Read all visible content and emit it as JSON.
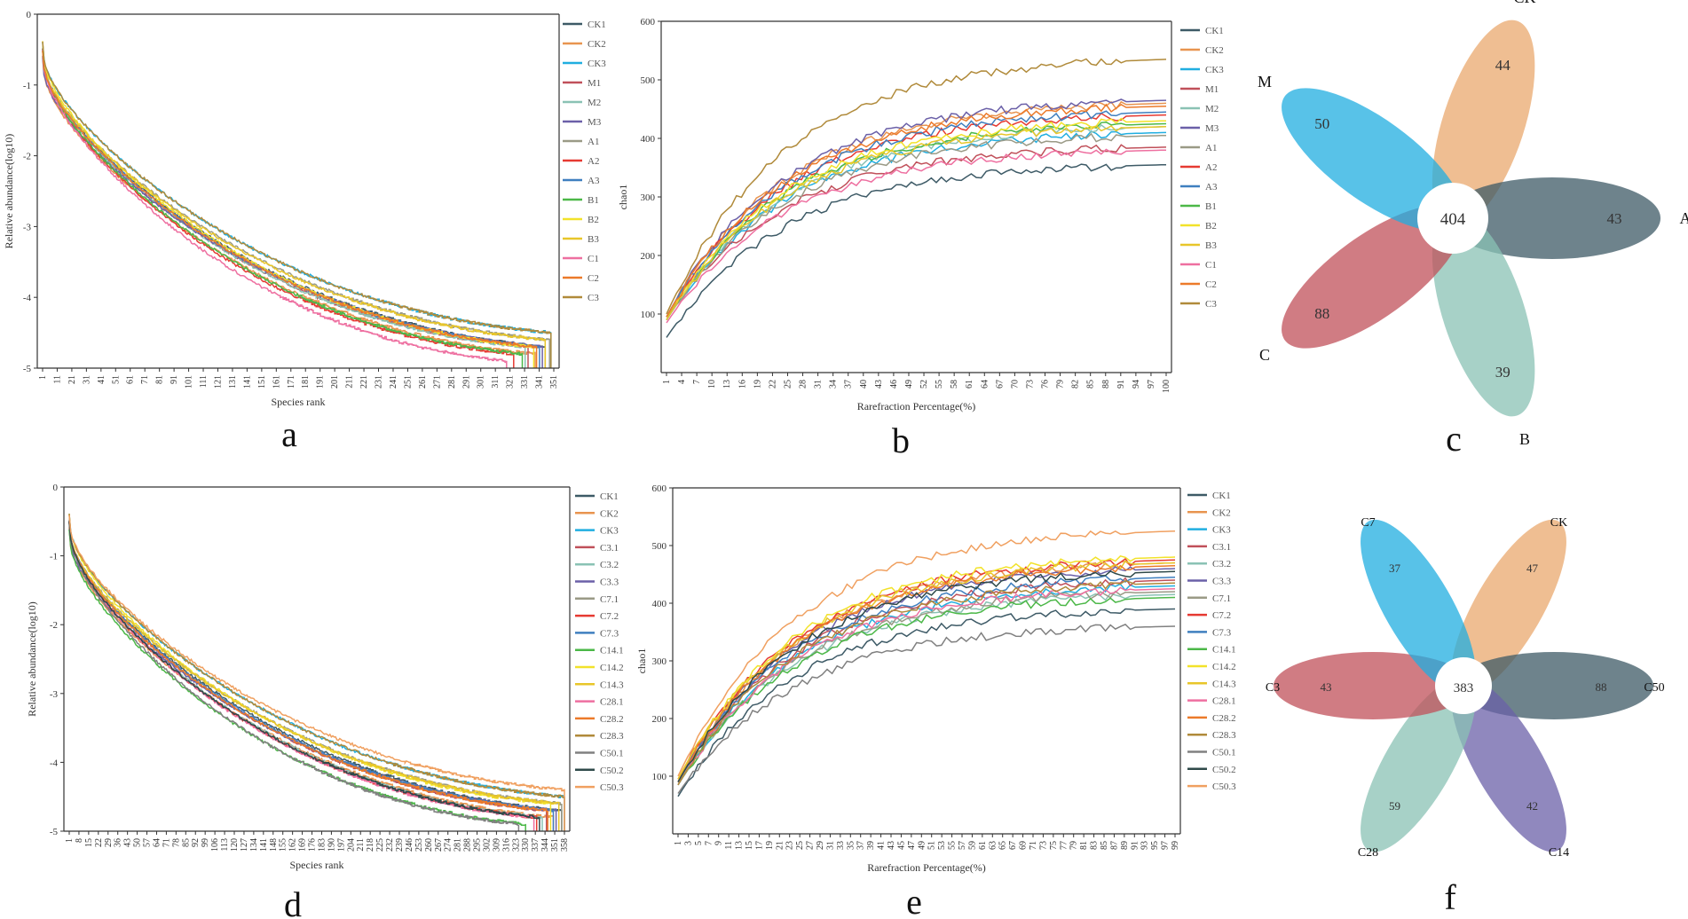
{
  "colors": {
    "CK1": "#3d5a66",
    "CK2": "#e8944f",
    "CK3": "#20aee0",
    "M1": "#c0505a",
    "M2": "#8ac2b4",
    "M3": "#6b60a8",
    "A1": "#9a9a86",
    "A2": "#e63a32",
    "A3": "#3f7fbf",
    "B1": "#4cb848",
    "B2": "#f2e22a",
    "B3": "#e8c62a",
    "C1": "#ee6fa0",
    "C2": "#ec7a2a",
    "C3": "#b08a3a",
    "C3.1": "#c0505a",
    "C3.2": "#8ac2b4",
    "C3.3": "#6b60a8",
    "C7.1": "#9a9a86",
    "C7.2": "#e63a32",
    "C7.3": "#3f7fbf",
    "C14.1": "#4cb848",
    "C14.2": "#f2e22a",
    "C14.3": "#e8c62a",
    "C28.1": "#ee6fa0",
    "C28.2": "#ec7a2a",
    "C28.3": "#b08a3a",
    "C50.1": "#808080",
    "C50.2": "#2f4a4a",
    "C50.3": "#f0a060"
  },
  "chart_data": [
    {
      "id": "a",
      "panel_label": "a",
      "type": "line",
      "xlabel": "Species rank",
      "ylabel": "Relative abundance(log10)",
      "ylim": [
        -5,
        0
      ],
      "yticks": [
        "0",
        "-1",
        "-2",
        "-3",
        "-4",
        "-5"
      ],
      "xticks": [
        "1",
        "11",
        "21",
        "31",
        "41",
        "51",
        "61",
        "71",
        "81",
        "91",
        "101",
        "111",
        "121",
        "131",
        "141",
        "151",
        "161",
        "171",
        "181",
        "191",
        "201",
        "211",
        "221",
        "231",
        "241",
        "251",
        "261",
        "271",
        "281",
        "291",
        "301",
        "311",
        "321",
        "331",
        "341",
        "351"
      ],
      "legend": [
        "CK1",
        "CK2",
        "CK3",
        "M1",
        "M2",
        "M3",
        "A1",
        "A2",
        "A3",
        "B1",
        "B2",
        "B3",
        "C1",
        "C2",
        "C3"
      ],
      "series_note": "rank-abundance curves, each starting near -0.5 at rank 1 and falling to about -4.5 to -5 by rank ~355",
      "series": [
        {
          "name": "CK1",
          "start": -0.5,
          "end": -4.7,
          "max_rank": 352
        },
        {
          "name": "CK2",
          "start": -0.6,
          "end": -4.8,
          "max_rank": 345
        },
        {
          "name": "CK3",
          "start": -0.4,
          "end": -4.5,
          "max_rank": 356
        },
        {
          "name": "M1",
          "start": -0.5,
          "end": -4.7,
          "max_rank": 340
        },
        {
          "name": "M2",
          "start": -0.5,
          "end": -4.7,
          "max_rank": 338
        },
        {
          "name": "M3",
          "start": -0.6,
          "end": -4.7,
          "max_rank": 350
        },
        {
          "name": "A1",
          "start": -0.5,
          "end": -4.6,
          "max_rank": 355
        },
        {
          "name": "A2",
          "start": -0.5,
          "end": -4.8,
          "max_rank": 330
        },
        {
          "name": "A3",
          "start": -0.5,
          "end": -4.7,
          "max_rank": 348
        },
        {
          "name": "B1",
          "start": -0.5,
          "end": -4.8,
          "max_rank": 336
        },
        {
          "name": "B2",
          "start": -0.4,
          "end": -4.7,
          "max_rank": 344
        },
        {
          "name": "B3",
          "start": -0.5,
          "end": -4.6,
          "max_rank": 352
        },
        {
          "name": "C1",
          "start": -0.5,
          "end": -4.9,
          "max_rank": 325
        },
        {
          "name": "C2",
          "start": -0.5,
          "end": -4.7,
          "max_rank": 346
        },
        {
          "name": "C3",
          "start": -0.4,
          "end": -4.5,
          "max_rank": 356
        }
      ]
    },
    {
      "id": "b",
      "panel_label": "b",
      "type": "line",
      "xlabel": "Rarefraction Percentage(%)",
      "ylabel": "chao1",
      "ylim": [
        0,
        600
      ],
      "yticks": [
        "100",
        "200",
        "300",
        "400",
        "500",
        "600"
      ],
      "xticks": [
        "1",
        "4",
        "7",
        "10",
        "13",
        "16",
        "19",
        "22",
        "25",
        "28",
        "31",
        "34",
        "37",
        "40",
        "43",
        "46",
        "49",
        "52",
        "55",
        "58",
        "61",
        "64",
        "67",
        "70",
        "73",
        "76",
        "79",
        "82",
        "85",
        "88",
        "91",
        "94",
        "97",
        "100"
      ],
      "legend": [
        "CK1",
        "CK2",
        "CK3",
        "M1",
        "M2",
        "M3",
        "A1",
        "A2",
        "A3",
        "B1",
        "B2",
        "B3",
        "C1",
        "C2",
        "C3"
      ],
      "series": [
        {
          "name": "CK1",
          "start": 60,
          "final": 355
        },
        {
          "name": "CK2",
          "start": 95,
          "final": 460
        },
        {
          "name": "CK3",
          "start": 90,
          "final": 410
        },
        {
          "name": "M1",
          "start": 95,
          "final": 385
        },
        {
          "name": "M2",
          "start": 90,
          "final": 420
        },
        {
          "name": "M3",
          "start": 95,
          "final": 465
        },
        {
          "name": "A1",
          "start": 90,
          "final": 405
        },
        {
          "name": "A2",
          "start": 95,
          "final": 440
        },
        {
          "name": "A3",
          "start": 95,
          "final": 445
        },
        {
          "name": "B1",
          "start": 90,
          "final": 425
        },
        {
          "name": "B2",
          "start": 95,
          "final": 430
        },
        {
          "name": "B3",
          "start": 90,
          "final": 420
        },
        {
          "name": "C1",
          "start": 85,
          "final": 380
        },
        {
          "name": "C2",
          "start": 95,
          "final": 455
        },
        {
          "name": "C3",
          "start": 100,
          "final": 535
        }
      ]
    },
    {
      "id": "c",
      "panel_label": "c",
      "type": "flower-venn",
      "core": 404,
      "petals": [
        {
          "name": "CK",
          "value": 44,
          "color": "#e9a86e"
        },
        {
          "name": "A",
          "value": 43,
          "color": "#3d5a66"
        },
        {
          "name": "B",
          "value": 39,
          "color": "#8ac2b4"
        },
        {
          "name": "C",
          "value": 88,
          "color": "#c0505a"
        },
        {
          "name": "M",
          "value": 50,
          "color": "#20aee0"
        }
      ]
    },
    {
      "id": "d",
      "panel_label": "d",
      "type": "line",
      "xlabel": "Species rank",
      "ylabel": "Relative abundance(log10)",
      "ylim": [
        -5,
        0
      ],
      "yticks": [
        "0",
        "-1",
        "-2",
        "-3",
        "-4",
        "-5"
      ],
      "xticks": [
        "1",
        "8",
        "15",
        "22",
        "29",
        "36",
        "43",
        "50",
        "57",
        "64",
        "71",
        "78",
        "85",
        "92",
        "99",
        "106",
        "113",
        "120",
        "127",
        "134",
        "141",
        "148",
        "155",
        "162",
        "169",
        "176",
        "183",
        "190",
        "197",
        "204",
        "211",
        "218",
        "225",
        "232",
        "239",
        "246",
        "253",
        "260",
        "267",
        "274",
        "281",
        "288",
        "295",
        "302",
        "309",
        "316",
        "323",
        "330",
        "337",
        "344",
        "351",
        "358"
      ],
      "legend": [
        "CK1",
        "CK2",
        "CK3",
        "C3.1",
        "C3.2",
        "C3.3",
        "C7.1",
        "C7.2",
        "C7.3",
        "C14.1",
        "C14.2",
        "C14.3",
        "C28.1",
        "C28.2",
        "C28.3",
        "C50.1",
        "C50.2",
        "C50.3"
      ],
      "series": [
        {
          "name": "CK1",
          "start": -0.5,
          "end": -4.7,
          "max_rank": 356
        },
        {
          "name": "CK2",
          "start": -0.6,
          "end": -4.8,
          "max_rank": 350
        },
        {
          "name": "CK3",
          "start": -0.4,
          "end": -4.5,
          "max_rank": 358
        },
        {
          "name": "C3.1",
          "start": -0.5,
          "end": -4.7,
          "max_rank": 345
        },
        {
          "name": "C3.2",
          "start": -0.5,
          "end": -4.8,
          "max_rank": 342
        },
        {
          "name": "C3.3",
          "start": -0.6,
          "end": -4.7,
          "max_rank": 352
        },
        {
          "name": "C7.1",
          "start": -0.5,
          "end": -4.6,
          "max_rank": 356
        },
        {
          "name": "C7.2",
          "start": -0.5,
          "end": -4.8,
          "max_rank": 338
        },
        {
          "name": "C7.3",
          "start": -0.5,
          "end": -4.7,
          "max_rank": 350
        },
        {
          "name": "C14.1",
          "start": -0.6,
          "end": -4.9,
          "max_rank": 330
        },
        {
          "name": "C14.2",
          "start": -0.4,
          "end": -4.6,
          "max_rank": 348
        },
        {
          "name": "C14.3",
          "start": -0.5,
          "end": -4.6,
          "max_rank": 354
        },
        {
          "name": "C28.1",
          "start": -0.5,
          "end": -4.8,
          "max_rank": 336
        },
        {
          "name": "C28.2",
          "start": -0.5,
          "end": -4.7,
          "max_rank": 346
        },
        {
          "name": "C28.3",
          "start": -0.4,
          "end": -4.5,
          "max_rank": 358
        },
        {
          "name": "C50.1",
          "start": -0.5,
          "end": -4.9,
          "max_rank": 325
        },
        {
          "name": "C50.2",
          "start": -0.5,
          "end": -4.8,
          "max_rank": 340
        },
        {
          "name": "C50.3",
          "start": -0.4,
          "end": -4.4,
          "max_rank": 358
        }
      ]
    },
    {
      "id": "e",
      "panel_label": "e",
      "type": "line",
      "xlabel": "Rarefraction Percentage(%)",
      "ylabel": "chao1",
      "ylim": [
        0,
        600
      ],
      "yticks": [
        "100",
        "200",
        "300",
        "400",
        "500",
        "600"
      ],
      "xticks": [
        "1",
        "3",
        "5",
        "7",
        "9",
        "11",
        "13",
        "15",
        "17",
        "19",
        "21",
        "23",
        "25",
        "27",
        "29",
        "31",
        "33",
        "35",
        "37",
        "39",
        "41",
        "43",
        "45",
        "47",
        "49",
        "51",
        "53",
        "55",
        "57",
        "59",
        "61",
        "63",
        "65",
        "67",
        "69",
        "71",
        "73",
        "75",
        "77",
        "79",
        "81",
        "83",
        "85",
        "87",
        "89",
        "91",
        "93",
        "95",
        "97",
        "99"
      ],
      "legend": [
        "CK1",
        "CK2",
        "CK3",
        "C3.1",
        "C3.2",
        "C3.3",
        "C7.1",
        "C7.2",
        "C7.3",
        "C14.1",
        "C14.2",
        "C14.3",
        "C28.1",
        "C28.2",
        "C28.3",
        "C50.1",
        "C50.2",
        "C50.3"
      ],
      "series": [
        {
          "name": "CK1",
          "start": 65,
          "final": 390
        },
        {
          "name": "CK2",
          "start": 90,
          "final": 470
        },
        {
          "name": "CK3",
          "start": 85,
          "final": 430
        },
        {
          "name": "C3.1",
          "start": 90,
          "final": 440
        },
        {
          "name": "C3.2",
          "start": 85,
          "final": 415
        },
        {
          "name": "C3.3",
          "start": 90,
          "final": 460
        },
        {
          "name": "C7.1",
          "start": 85,
          "final": 420
        },
        {
          "name": "C7.2",
          "start": 95,
          "final": 475
        },
        {
          "name": "C7.3",
          "start": 90,
          "final": 445
        },
        {
          "name": "C14.1",
          "start": 85,
          "final": 410
        },
        {
          "name": "C14.2",
          "start": 95,
          "final": 480
        },
        {
          "name": "C14.3",
          "start": 95,
          "final": 470
        },
        {
          "name": "C28.1",
          "start": 85,
          "final": 425
        },
        {
          "name": "C28.2",
          "start": 90,
          "final": 465
        },
        {
          "name": "C28.3",
          "start": 85,
          "final": 435
        },
        {
          "name": "C50.1",
          "start": 70,
          "final": 360
        },
        {
          "name": "C50.2",
          "start": 90,
          "final": 455
        },
        {
          "name": "C50.3",
          "start": 100,
          "final": 525
        }
      ]
    },
    {
      "id": "f",
      "panel_label": "f",
      "type": "flower-venn",
      "core": 383,
      "petals": [
        {
          "name": "CK",
          "value": 47,
          "color": "#e9a86e"
        },
        {
          "name": "C50",
          "value": 88,
          "color": "#3d5a66"
        },
        {
          "name": "C14",
          "value": 42,
          "color": "#6b60a8"
        },
        {
          "name": "C28",
          "value": 59,
          "color": "#8ac2b4"
        },
        {
          "name": "C3",
          "value": 43,
          "color": "#c0505a"
        },
        {
          "name": "C7",
          "value": 37,
          "color": "#20aee0"
        }
      ]
    }
  ]
}
